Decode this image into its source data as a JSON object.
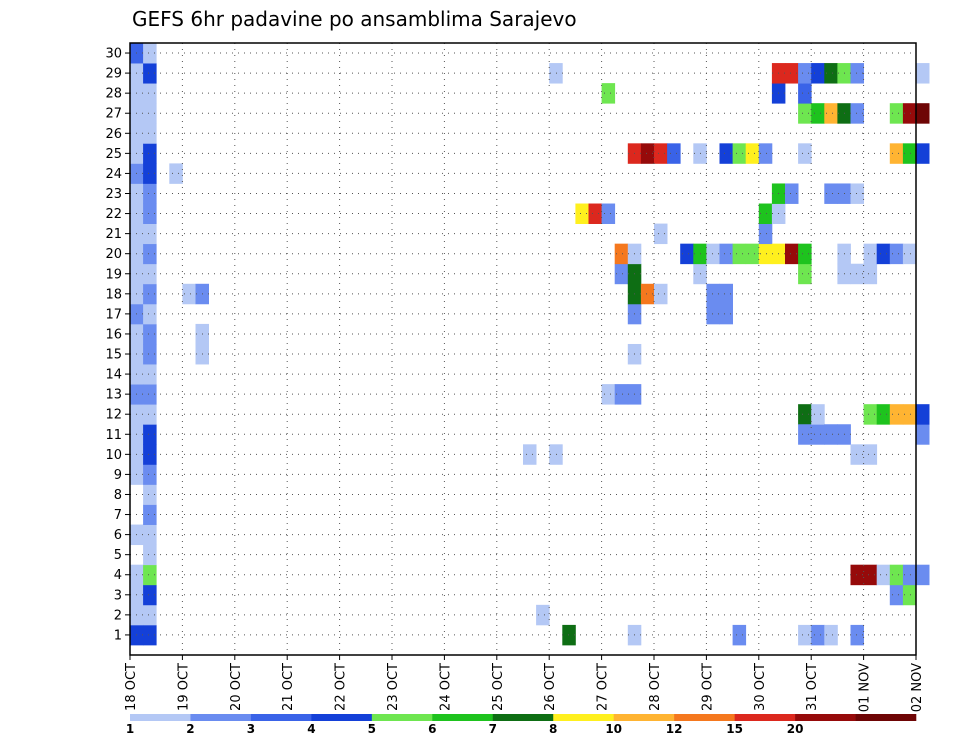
{
  "chart_data": {
    "type": "heatmap",
    "title": "GEFS 6hr padavine po ansamblima Sarajevo",
    "xlabel": "",
    "ylabel": "",
    "x_tick_labels": [
      "18 OCT",
      "19 OCT",
      "20 OCT",
      "21 OCT",
      "22 OCT",
      "23 OCT",
      "24 OCT",
      "25 OCT",
      "26 OCT",
      "27 OCT",
      "28 OCT",
      "29 OCT",
      "30 OCT",
      "31 OCT",
      "01 NOV",
      "02 NOV"
    ],
    "y_tick_labels": [
      "1",
      "2",
      "3",
      "4",
      "5",
      "6",
      "7",
      "8",
      "9",
      "10",
      "11",
      "12",
      "13",
      "14",
      "15",
      "16",
      "17",
      "18",
      "19",
      "20",
      "21",
      "22",
      "23",
      "24",
      "25",
      "26",
      "27",
      "28",
      "29",
      "30"
    ],
    "ylim": [
      1,
      30
    ],
    "steps_per_day": 4,
    "grid": true,
    "legend": {
      "placement": "bottom",
      "labels": [
        "1",
        "2",
        "3",
        "4",
        "5",
        "6",
        "7",
        "8",
        "10",
        "12",
        "15",
        "20"
      ],
      "colors": [
        "#b4c8f5",
        "#6a8cf0",
        "#3a63e8",
        "#1440d8",
        "#6ee650",
        "#1ec31e",
        "#0e6e14",
        "#fff01e",
        "#ffb432",
        "#f5781e",
        "#dc281e",
        "#960a0a",
        "#6e0505"
      ]
    },
    "column_series": [
      {
        "column": 1,
        "cells": [
          [
            1,
            4
          ],
          [
            2,
            1
          ],
          [
            3,
            1
          ],
          [
            4,
            1
          ],
          [
            6,
            1
          ],
          [
            9,
            1
          ],
          [
            10,
            1
          ],
          [
            11,
            1
          ],
          [
            12,
            1
          ],
          [
            13,
            2
          ],
          [
            14,
            1
          ],
          [
            15,
            1
          ],
          [
            16,
            1
          ],
          [
            17,
            2
          ],
          [
            18,
            1
          ],
          [
            19,
            1
          ],
          [
            20,
            1
          ],
          [
            21,
            1
          ],
          [
            22,
            1
          ],
          [
            23,
            1
          ],
          [
            24,
            2
          ],
          [
            25,
            1
          ],
          [
            26,
            1
          ],
          [
            27,
            1
          ],
          [
            28,
            1
          ],
          [
            29,
            1
          ],
          [
            30,
            3
          ]
        ]
      },
      {
        "column": 2,
        "cells": [
          [
            1,
            4
          ],
          [
            2,
            1
          ],
          [
            3,
            4
          ],
          [
            4,
            5
          ],
          [
            5,
            1
          ],
          [
            6,
            1
          ],
          [
            7,
            2
          ],
          [
            8,
            1
          ],
          [
            9,
            2
          ],
          [
            10,
            4
          ],
          [
            11,
            4
          ],
          [
            12,
            1
          ],
          [
            13,
            2
          ],
          [
            14,
            1
          ],
          [
            15,
            2
          ],
          [
            16,
            2
          ],
          [
            17,
            1
          ],
          [
            18,
            2
          ],
          [
            19,
            1
          ],
          [
            20,
            2
          ],
          [
            21,
            1
          ],
          [
            22,
            2
          ],
          [
            23,
            2
          ],
          [
            24,
            4
          ],
          [
            25,
            4
          ],
          [
            26,
            1
          ],
          [
            27,
            1
          ],
          [
            28,
            1
          ],
          [
            29,
            4
          ],
          [
            30,
            1
          ]
        ]
      },
      {
        "column": 4,
        "cells": [
          [
            24,
            1
          ]
        ]
      },
      {
        "column": 5,
        "cells": [
          [
            18,
            1
          ]
        ]
      },
      {
        "column": 6,
        "cells": [
          [
            15,
            1
          ],
          [
            16,
            1
          ],
          [
            18,
            2
          ]
        ]
      },
      {
        "column": 31,
        "cells": [
          [
            10,
            1
          ]
        ]
      },
      {
        "column": 32,
        "cells": [
          [
            2,
            1
          ]
        ]
      },
      {
        "column": 33,
        "cells": [
          [
            10,
            1
          ],
          [
            29,
            1
          ]
        ]
      },
      {
        "column": 34,
        "cells": [
          [
            1,
            7
          ]
        ]
      },
      {
        "column": 35,
        "cells": [
          [
            22,
            8
          ]
        ]
      },
      {
        "column": 36,
        "cells": [
          [
            22,
            11
          ]
        ]
      },
      {
        "column": 37,
        "cells": [
          [
            13,
            1
          ],
          [
            22,
            2
          ],
          [
            28,
            5
          ]
        ]
      },
      {
        "column": 38,
        "cells": [
          [
            13,
            2
          ],
          [
            19,
            2
          ],
          [
            20,
            10
          ]
        ]
      },
      {
        "column": 39,
        "cells": [
          [
            1,
            1
          ],
          [
            13,
            2
          ],
          [
            15,
            1
          ],
          [
            17,
            2
          ],
          [
            18,
            7
          ],
          [
            19,
            7
          ],
          [
            20,
            1
          ],
          [
            25,
            11
          ]
        ]
      },
      {
        "column": 40,
        "cells": [
          [
            18,
            10
          ],
          [
            25,
            12
          ]
        ]
      },
      {
        "column": 41,
        "cells": [
          [
            18,
            1
          ],
          [
            21,
            1
          ],
          [
            25,
            11
          ]
        ]
      },
      {
        "column": 42,
        "cells": [
          [
            25,
            3
          ]
        ]
      },
      {
        "column": 43,
        "cells": [
          [
            20,
            4
          ]
        ]
      },
      {
        "column": 44,
        "cells": [
          [
            19,
            1
          ],
          [
            20,
            6
          ],
          [
            25,
            1
          ]
        ]
      },
      {
        "column": 45,
        "cells": [
          [
            17,
            2
          ],
          [
            18,
            2
          ],
          [
            20,
            1
          ]
        ]
      },
      {
        "column": 46,
        "cells": [
          [
            17,
            2
          ],
          [
            18,
            2
          ],
          [
            20,
            2
          ],
          [
            25,
            4
          ]
        ]
      },
      {
        "column": 47,
        "cells": [
          [
            1,
            2
          ],
          [
            20,
            5
          ],
          [
            25,
            5
          ]
        ]
      },
      {
        "column": 48,
        "cells": [
          [
            20,
            5
          ],
          [
            25,
            8
          ]
        ]
      },
      {
        "column": 49,
        "cells": [
          [
            20,
            8
          ],
          [
            21,
            2
          ],
          [
            22,
            6
          ],
          [
            25,
            2
          ]
        ]
      },
      {
        "column": 50,
        "cells": [
          [
            20,
            8
          ],
          [
            22,
            1
          ],
          [
            23,
            6
          ],
          [
            28,
            4
          ],
          [
            29,
            11
          ]
        ]
      },
      {
        "column": 51,
        "cells": [
          [
            20,
            12
          ],
          [
            23,
            2
          ],
          [
            29,
            11
          ]
        ]
      },
      {
        "column": 52,
        "cells": [
          [
            1,
            1
          ],
          [
            12,
            7
          ],
          [
            11,
            2
          ],
          [
            19,
            5
          ],
          [
            20,
            6
          ],
          [
            25,
            1
          ],
          [
            27,
            5
          ],
          [
            28,
            3
          ],
          [
            29,
            2
          ]
        ]
      },
      {
        "column": 53,
        "cells": [
          [
            1,
            2
          ],
          [
            11,
            2
          ],
          [
            12,
            1
          ],
          [
            27,
            6
          ],
          [
            29,
            4
          ]
        ]
      },
      {
        "column": 54,
        "cells": [
          [
            1,
            1
          ],
          [
            11,
            2
          ],
          [
            23,
            2
          ],
          [
            27,
            9
          ],
          [
            29,
            7
          ]
        ]
      },
      {
        "column": 55,
        "cells": [
          [
            11,
            2
          ],
          [
            19,
            1
          ],
          [
            20,
            1
          ],
          [
            23,
            2
          ],
          [
            27,
            7
          ],
          [
            29,
            5
          ]
        ]
      },
      {
        "column": 56,
        "cells": [
          [
            1,
            2
          ],
          [
            4,
            12
          ],
          [
            10,
            1
          ],
          [
            19,
            1
          ],
          [
            23,
            1
          ],
          [
            27,
            2
          ],
          [
            29,
            2
          ]
        ]
      },
      {
        "column": 57,
        "cells": [
          [
            4,
            12
          ],
          [
            10,
            1
          ],
          [
            12,
            5
          ],
          [
            19,
            1
          ],
          [
            20,
            1
          ]
        ]
      },
      {
        "column": 58,
        "cells": [
          [
            4,
            1
          ],
          [
            12,
            6
          ],
          [
            20,
            4
          ]
        ]
      },
      {
        "column": 59,
        "cells": [
          [
            3,
            2
          ],
          [
            4,
            5
          ],
          [
            12,
            9
          ],
          [
            20,
            2
          ],
          [
            25,
            9
          ],
          [
            27,
            5
          ]
        ]
      },
      {
        "column": 60,
        "cells": [
          [
            3,
            5
          ],
          [
            4,
            2
          ],
          [
            12,
            9
          ],
          [
            20,
            1
          ],
          [
            25,
            6
          ],
          [
            27,
            12
          ]
        ]
      },
      {
        "column": 61,
        "cells": [
          [
            4,
            2
          ],
          [
            11,
            2
          ],
          [
            12,
            4
          ],
          [
            25,
            4
          ],
          [
            27,
            13
          ],
          [
            29,
            1
          ]
        ]
      }
    ]
  }
}
